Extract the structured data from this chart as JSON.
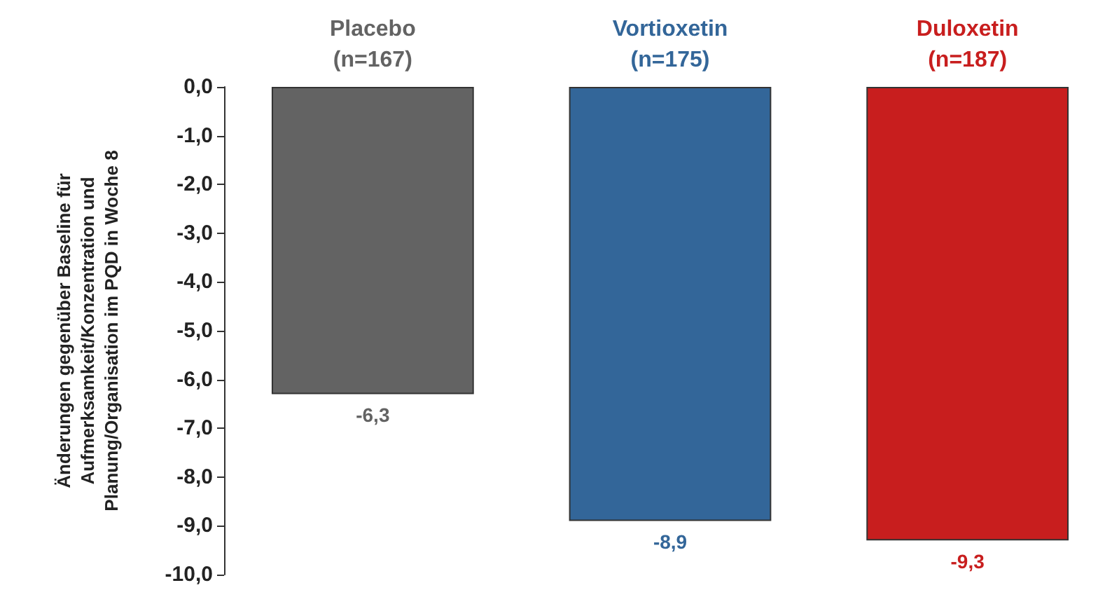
{
  "chart_data": {
    "type": "bar",
    "ylabel": "Änderungen gegenüber Baseline für Aufmerksamkeit/Konzentration und Planung/Organisation im PQD in Woche 8",
    "categories": [
      "Placebo\n(n=167)",
      "Vortioxetin\n(n=175)",
      "Duloxetin\n(n=187)"
    ],
    "values": [
      -6.3,
      -8.9,
      -9.3
    ],
    "colors": [
      "#636363",
      "#336699",
      "#c81e1e"
    ],
    "value_labels": [
      "-6,3",
      "-8,9",
      "-9,3"
    ],
    "ylim": [
      -10,
      0
    ],
    "yticks": [
      {
        "value": 0,
        "label": "0,0"
      },
      {
        "value": -1,
        "label": "-1,0"
      },
      {
        "value": -2,
        "label": "-2,0"
      },
      {
        "value": -3,
        "label": "-3,0"
      },
      {
        "value": -4,
        "label": "-4,0"
      },
      {
        "value": -5,
        "label": "-5,0"
      },
      {
        "value": -6,
        "label": "-6,0"
      },
      {
        "value": -7,
        "label": "-7,0"
      },
      {
        "value": -8,
        "label": "-8,0"
      },
      {
        "value": -9,
        "label": "-9,0"
      },
      {
        "value": -10,
        "label": "-10,0"
      }
    ],
    "grid": false
  }
}
